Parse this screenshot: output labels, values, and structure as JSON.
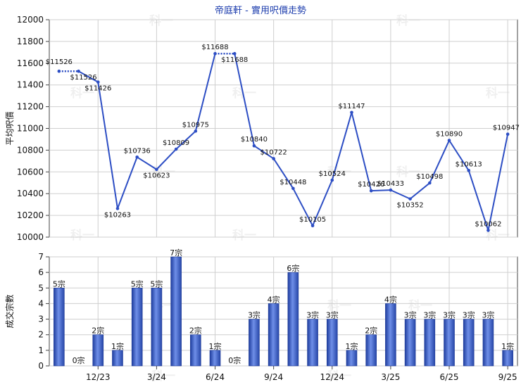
{
  "chart_data": [
    {
      "type": "line",
      "title": "帝庭軒 - 實用呎價走勢",
      "xlabel": "",
      "ylabel": "平均呎價",
      "ylim": [
        10000,
        12000
      ],
      "yticks": [
        10000,
        10200,
        10400,
        10600,
        10800,
        11000,
        11200,
        11400,
        11600,
        11800,
        12000
      ],
      "grid": true,
      "color": "#2d4ec4",
      "series": [
        {
          "values": [
            11526,
            11526,
            11426,
            10263,
            10736,
            10623,
            10809,
            10975,
            11688,
            11688,
            10840,
            10722,
            10448,
            10105,
            10524,
            11147,
            10426,
            10433,
            10352,
            10498,
            10890,
            10613,
            10062,
            10947
          ],
          "labels": [
            "$11526",
            "$11526",
            "$11426",
            "$10263",
            "$10736",
            "$10623",
            "$10809",
            "$10975",
            "$11688",
            "$11688",
            "$10840",
            "$10722",
            "$10448",
            "$10105",
            "$10524",
            "$11147",
            "$10426",
            "$10433",
            "$10352",
            "$10498",
            "$10890",
            "$10613",
            "$10062",
            "$10947"
          ],
          "dotted_segments": [
            0,
            8
          ]
        }
      ]
    },
    {
      "type": "bar",
      "xlabel": "",
      "ylabel": "成交宗數",
      "ylim": [
        0,
        7
      ],
      "yticks": [
        0,
        1,
        2,
        3,
        4,
        5,
        6,
        7
      ],
      "grid": true,
      "color": "#3a5fcc",
      "values": [
        5,
        0,
        2,
        1,
        5,
        5,
        7,
        2,
        1,
        0,
        3,
        4,
        6,
        3,
        3,
        1,
        2,
        4,
        3,
        3,
        3,
        3,
        3,
        1
      ],
      "labels": [
        "5宗",
        "0宗",
        "2宗",
        "1宗",
        "5宗",
        "5宗",
        "7宗",
        "2宗",
        "1宗",
        "0宗",
        "3宗",
        "4宗",
        "6宗",
        "3宗",
        "3宗",
        "1宗",
        "2宗",
        "4宗",
        "3宗",
        "3宗",
        "3宗",
        "3宗",
        "3宗",
        "1宗"
      ],
      "x_tick_labels": [
        {
          "index": 2,
          "label": "12/23"
        },
        {
          "index": 5,
          "label": "3/24"
        },
        {
          "index": 8,
          "label": "6/24"
        },
        {
          "index": 11,
          "label": "9/24"
        },
        {
          "index": 14,
          "label": "12/24"
        },
        {
          "index": 17,
          "label": "3/25"
        },
        {
          "index": 20,
          "label": "6/25"
        },
        {
          "index": 23,
          "label": "9/25"
        }
      ]
    }
  ],
  "watermark": "科一"
}
